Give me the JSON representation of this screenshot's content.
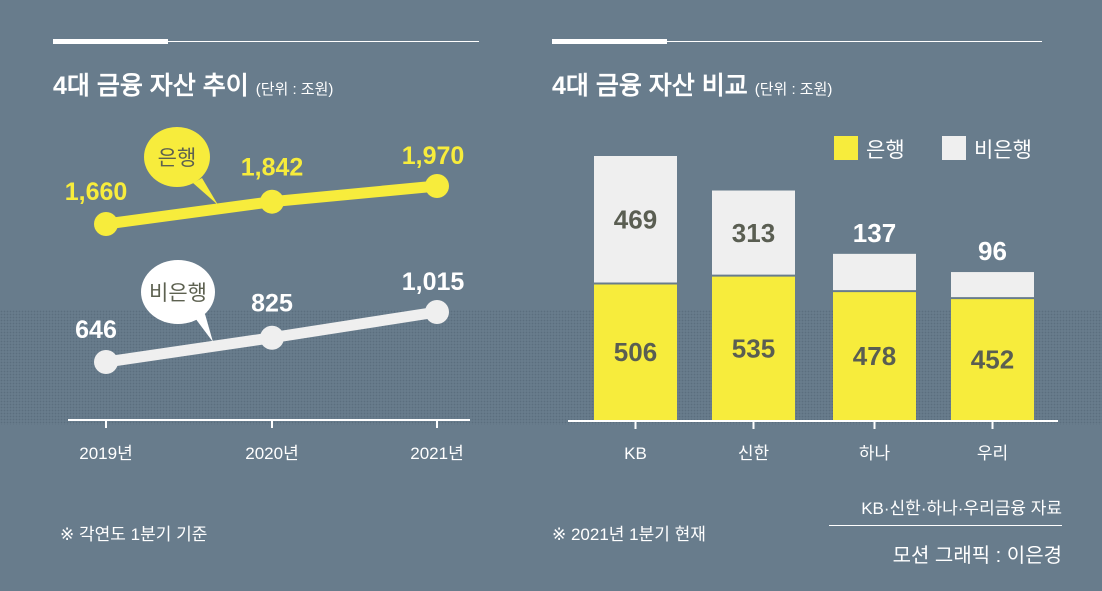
{
  "left": {
    "title": "4대 금융 자산 추이",
    "unit": "(단위 : 조원)",
    "note": "※ 각연도 1분기 기준"
  },
  "right": {
    "title": "4대 금융 자산 비교",
    "unit": "(단위 : 조원)",
    "note": "※ 2021년 1분기 현재",
    "source": "KB·신한·하나·우리금융 자료",
    "credit": "모션 그래픽 : 이은경"
  },
  "colors": {
    "bank": "#f7ec3c",
    "nonbank": "#efefef",
    "background": "#687c8c"
  },
  "chart_data": [
    {
      "type": "line",
      "title": "4대 금융 자산 추이",
      "x": [
        "2019년",
        "2020년",
        "2021년"
      ],
      "series": [
        {
          "name": "은행",
          "values": [
            1660,
            1842,
            1970
          ],
          "labels": [
            "1,660",
            "1,842",
            "1,970"
          ]
        },
        {
          "name": "비은행",
          "values": [
            646,
            825,
            1015
          ],
          "labels": [
            "646",
            "825",
            "1,015"
          ]
        }
      ]
    },
    {
      "type": "bar",
      "stacked": true,
      "title": "4대 금융 자산 비교",
      "categories": [
        "KB",
        "신한",
        "하나",
        "우리"
      ],
      "series": [
        {
          "name": "은행",
          "values": [
            506,
            535,
            478,
            452
          ]
        },
        {
          "name": "비은행",
          "values": [
            469,
            313,
            137,
            96
          ]
        }
      ],
      "legend": "top-right"
    }
  ]
}
